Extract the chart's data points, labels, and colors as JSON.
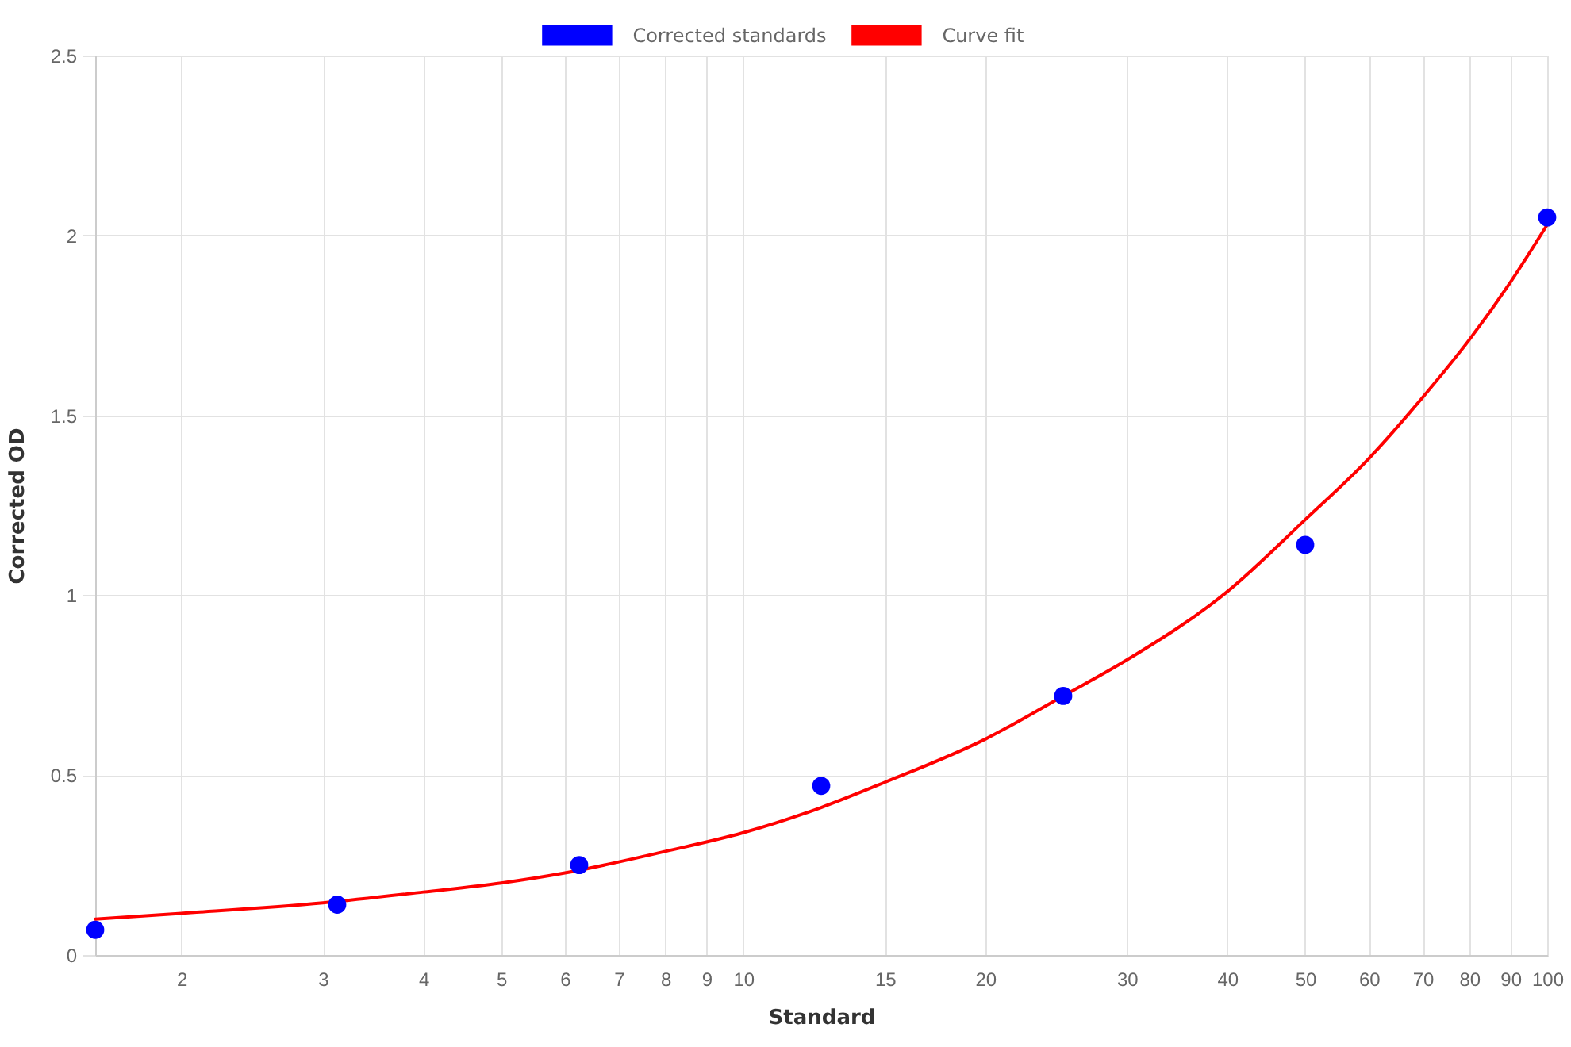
{
  "chart_data": {
    "type": "scatter",
    "xlabel": "Standard",
    "ylabel": "Corrected OD",
    "log": "x",
    "xlim": [
      1.5625,
      100
    ],
    "ylim": [
      0,
      2.5
    ],
    "xticks": [
      2,
      3,
      4,
      5,
      6,
      7,
      8,
      9,
      10,
      15,
      20,
      30,
      40,
      50,
      60,
      70,
      80,
      90,
      100
    ],
    "yticks": [
      0,
      0.5,
      1,
      1.5,
      2,
      2.5
    ],
    "grid": true,
    "legend": "top",
    "marker": "circle",
    "series": [
      {
        "name": "Corrected standards",
        "color": "#0000ff",
        "x": [
          1.5625,
          3.125,
          6.25,
          12.5,
          25,
          50,
          100
        ],
        "values": [
          0.07,
          0.14,
          0.25,
          0.47,
          0.72,
          1.14,
          2.05
        ]
      },
      {
        "name": "Curve fit",
        "color": "#ff0000",
        "type": "line",
        "marker": "none",
        "line_style": "solid",
        "x": [
          1.5625,
          2,
          3,
          4,
          5,
          6,
          8,
          10,
          12.5,
          15,
          20,
          25,
          30,
          40,
          50,
          60,
          70,
          80,
          90,
          100
        ],
        "values": [
          0.1,
          0.116,
          0.145,
          0.175,
          0.2,
          0.228,
          0.288,
          0.34,
          0.41,
          0.48,
          0.6,
          0.72,
          0.82,
          1.01,
          1.21,
          1.38,
          1.55,
          1.71,
          1.87,
          2.03
        ]
      }
    ]
  }
}
